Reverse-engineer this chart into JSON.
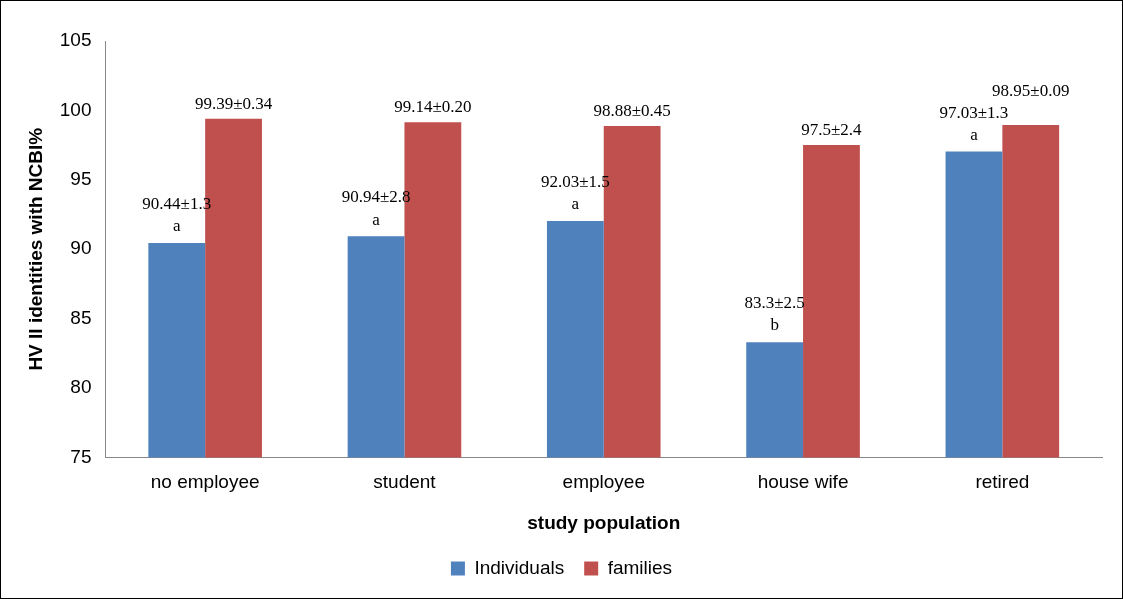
{
  "chart_data": {
    "type": "bar",
    "xlabel": "study population",
    "ylabel": "HV II identities with NCBI%",
    "categories": [
      "no employee",
      "student",
      "employee",
      "house wife",
      "retired"
    ],
    "series": [
      {
        "name": "Individuals",
        "color": "#4f81bd",
        "values": [
          90.44,
          90.94,
          92.03,
          83.3,
          97.03
        ],
        "value_labels": [
          "90.44±1.3",
          "90.94±2.8",
          "92.03±1.5",
          "83.3±2.5",
          "97.03±1.3"
        ]
      },
      {
        "name": "families",
        "color": "#c0504d",
        "values": [
          99.39,
          99.14,
          98.88,
          97.5,
          98.95
        ],
        "value_labels": [
          "99.39±0.34",
          "99.14±0.20",
          "98.88±0.45",
          "97.5±2.4",
          "98.95±0.09"
        ]
      }
    ],
    "annotations": [
      {
        "text": "a",
        "x": "no employee",
        "y": 91.6
      },
      {
        "text": "a",
        "x": "student",
        "y": 92.1
      },
      {
        "text": "a",
        "x": "employee",
        "y": 93.2
      },
      {
        "text": "b",
        "x": "house wife",
        "y": 84.5
      },
      {
        "text": "a",
        "x": "retired",
        "y": 98.2
      }
    ],
    "ylim": [
      75,
      105
    ],
    "yticks": [
      75,
      80,
      85,
      90,
      95,
      100,
      105
    ],
    "grid": false,
    "legend": "bottom"
  }
}
